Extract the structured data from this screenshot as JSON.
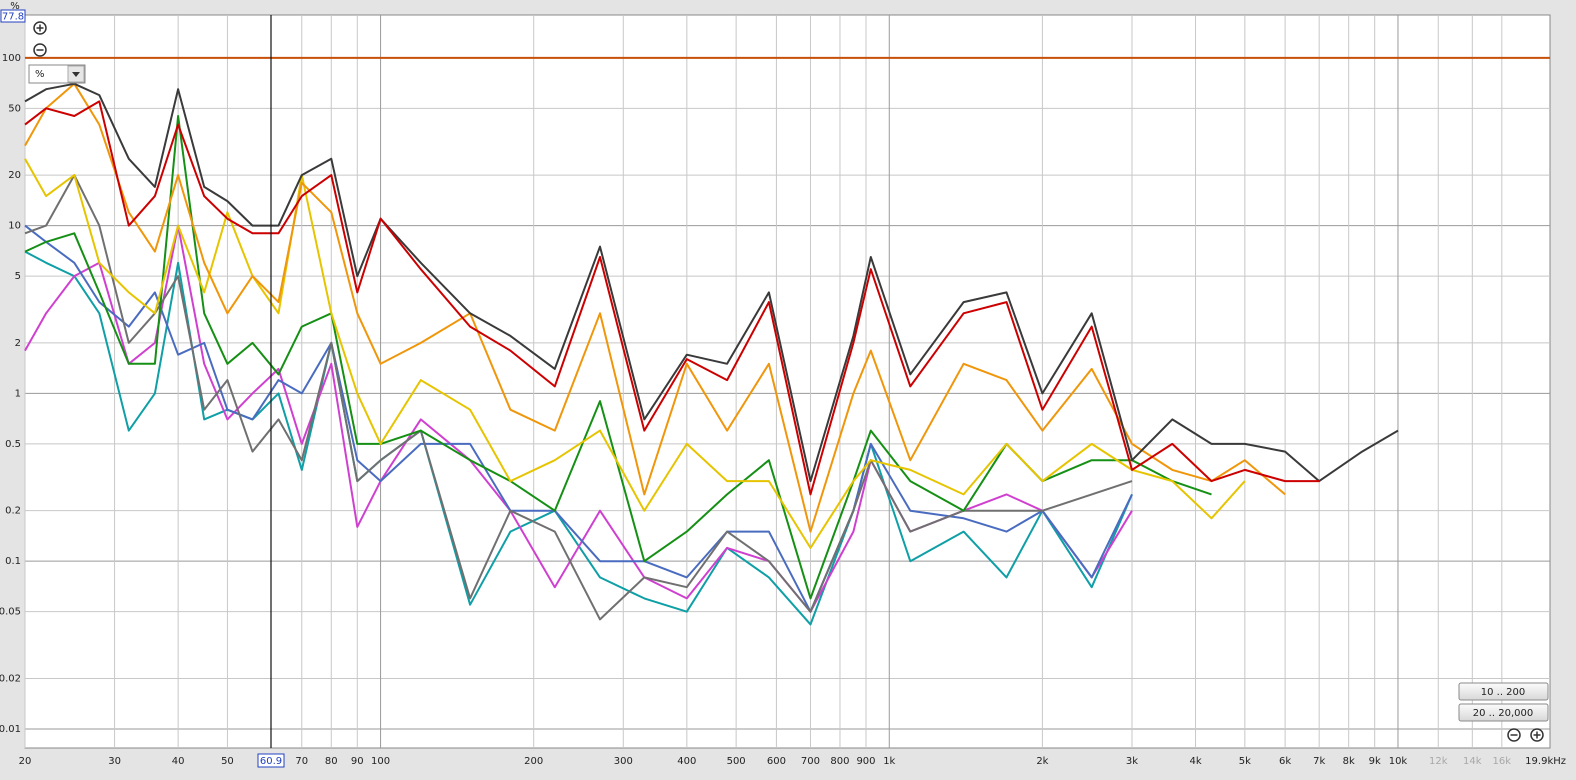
{
  "chart_data": {
    "type": "line",
    "y_unit": "%",
    "cursor_readout": 77.8,
    "cursor_x": 60.9,
    "reference_line": 100,
    "reference_color": "#c8500a",
    "unit_dropdown": "%",
    "buttons": [
      "10 .. 200",
      "20 .. 20,000"
    ],
    "log_x": true,
    "log_y": true,
    "grid": true,
    "xlim": [
      20,
      19900
    ],
    "ylim": [
      0.0077,
      180
    ],
    "xticks": [
      20,
      30,
      40,
      50,
      70,
      80,
      90,
      100,
      200,
      300,
      400,
      500,
      600,
      700,
      800,
      900,
      {
        "value": 1000,
        "label": "1k"
      },
      {
        "value": 2000,
        "label": "2k"
      },
      {
        "value": 3000,
        "label": "3k"
      },
      {
        "value": 4000,
        "label": "4k"
      },
      {
        "value": 5000,
        "label": "5k"
      },
      {
        "value": 6000,
        "label": "6k"
      },
      {
        "value": 7000,
        "label": "7k"
      },
      {
        "value": 8000,
        "label": "8k"
      },
      {
        "value": 9000,
        "label": "9k"
      },
      {
        "value": 10000,
        "label": "10k"
      },
      {
        "value": 12000,
        "label": "12k"
      },
      {
        "value": 14000,
        "label": "14k"
      },
      {
        "value": 16000,
        "label": "16k"
      },
      {
        "value": 19900,
        "label": "19.9kHz"
      }
    ],
    "yticks": [
      100,
      50,
      20,
      10,
      5,
      2,
      1,
      0.5,
      0.2,
      0.1,
      0.05,
      0.02,
      0.01
    ],
    "x": [
      20,
      22,
      25,
      28,
      32,
      36,
      40,
      45,
      50,
      56,
      63,
      70,
      80,
      90,
      100,
      120,
      150,
      180,
      220,
      270,
      330,
      400,
      480,
      580,
      700,
      850,
      920,
      1100,
      1400,
      1700,
      2000,
      2500,
      3000,
      3600,
      4300,
      5000,
      6000,
      7000,
      8500,
      10000
    ],
    "series": [
      {
        "color": "#0f9fa6",
        "values": [
          7,
          6,
          5,
          3,
          0.6,
          1,
          6,
          0.7,
          0.8,
          0.7,
          1,
          0.35,
          2,
          0.3,
          0.4,
          0.6,
          0.055,
          0.15,
          0.2,
          0.08,
          0.06,
          0.05,
          0.12,
          0.08,
          0.042,
          0.2,
          0.5,
          0.1,
          0.15,
          0.08,
          0.2,
          0.07,
          0.25,
          null,
          null,
          null,
          null,
          null,
          null,
          null
        ]
      },
      {
        "color": "#d040d0",
        "values": [
          1.8,
          3,
          5,
          6,
          1.5,
          2,
          10,
          1.5,
          0.7,
          1,
          1.4,
          0.5,
          1.5,
          0.16,
          0.3,
          0.7,
          0.4,
          0.2,
          0.07,
          0.2,
          0.08,
          0.06,
          0.12,
          0.1,
          0.05,
          0.15,
          0.4,
          0.15,
          0.2,
          0.25,
          0.2,
          0.08,
          0.2,
          null,
          null,
          null,
          null,
          null,
          null,
          null
        ]
      },
      {
        "color": "#4a6cc0",
        "values": [
          10,
          8,
          6,
          3.5,
          2.5,
          4,
          1.7,
          2,
          0.8,
          0.7,
          1.2,
          1,
          2,
          0.4,
          0.3,
          0.5,
          0.5,
          0.2,
          0.2,
          0.1,
          0.1,
          0.08,
          0.15,
          0.15,
          0.05,
          0.2,
          0.5,
          0.2,
          0.18,
          0.15,
          0.2,
          0.08,
          0.25,
          null,
          null,
          null,
          null,
          null,
          null,
          null
        ]
      },
      {
        "color": "#707070",
        "values": [
          9,
          10,
          20,
          10,
          2,
          3,
          5,
          0.8,
          1.2,
          0.45,
          0.7,
          0.4,
          2,
          0.3,
          0.4,
          0.6,
          0.06,
          0.2,
          0.15,
          0.045,
          0.08,
          0.07,
          0.15,
          0.1,
          0.05,
          0.2,
          0.4,
          0.15,
          0.2,
          0.2,
          0.2,
          0.25,
          0.3,
          null,
          null,
          null,
          null,
          null,
          null,
          null
        ]
      },
      {
        "color": "#159015",
        "values": [
          7,
          8,
          9,
          4,
          1.5,
          1.5,
          45,
          3,
          1.5,
          2,
          1.3,
          2.5,
          3,
          0.5,
          0.5,
          0.6,
          0.4,
          0.3,
          0.2,
          0.9,
          0.1,
          0.15,
          0.25,
          0.4,
          0.06,
          0.3,
          0.6,
          0.3,
          0.2,
          0.5,
          0.3,
          0.4,
          0.4,
          0.3,
          0.25,
          null,
          null,
          null,
          null,
          null
        ]
      },
      {
        "color": "#e6c400",
        "values": [
          25,
          15,
          20,
          6,
          4,
          3,
          10,
          4,
          12,
          5,
          3,
          20,
          3,
          1,
          0.5,
          1.2,
          0.8,
          0.3,
          0.4,
          0.6,
          0.2,
          0.5,
          0.3,
          0.3,
          0.12,
          0.3,
          0.4,
          0.35,
          0.25,
          0.5,
          0.3,
          0.5,
          0.35,
          0.3,
          0.18,
          0.3,
          null,
          null,
          null,
          null
        ]
      },
      {
        "color": "#f0960a",
        "values": [
          30,
          50,
          70,
          40,
          12,
          7,
          20,
          6,
          3,
          5,
          3.5,
          18,
          12,
          3,
          1.5,
          2,
          3,
          0.8,
          0.6,
          3,
          0.25,
          1.5,
          0.6,
          1.5,
          0.15,
          1,
          1.8,
          0.4,
          1.5,
          1.2,
          0.6,
          1.4,
          0.5,
          0.35,
          0.3,
          0.4,
          0.25,
          null,
          null,
          null
        ]
      },
      {
        "color": "#3a3a3a",
        "values": [
          55,
          65,
          70,
          60,
          25,
          17,
          65,
          17,
          14,
          10,
          10,
          20,
          25,
          5,
          11,
          6,
          3,
          2.2,
          1.4,
          7.5,
          0.7,
          1.7,
          1.5,
          4,
          0.3,
          2.2,
          6.5,
          1.3,
          3.5,
          4,
          1,
          3,
          0.4,
          0.7,
          0.5,
          0.5,
          0.45,
          0.3,
          0.45,
          0.6
        ]
      },
      {
        "color": "#cc0000",
        "values": [
          40,
          50,
          45,
          55,
          10,
          15,
          40,
          15,
          11,
          9,
          9,
          15,
          20,
          4,
          11,
          5.5,
          2.5,
          1.8,
          1.1,
          6.5,
          0.6,
          1.6,
          1.2,
          3.5,
          0.25,
          2,
          5.5,
          1.1,
          3,
          3.5,
          0.8,
          2.5,
          0.35,
          0.5,
          0.3,
          0.35,
          0.3,
          0.3,
          null,
          null
        ]
      }
    ]
  }
}
